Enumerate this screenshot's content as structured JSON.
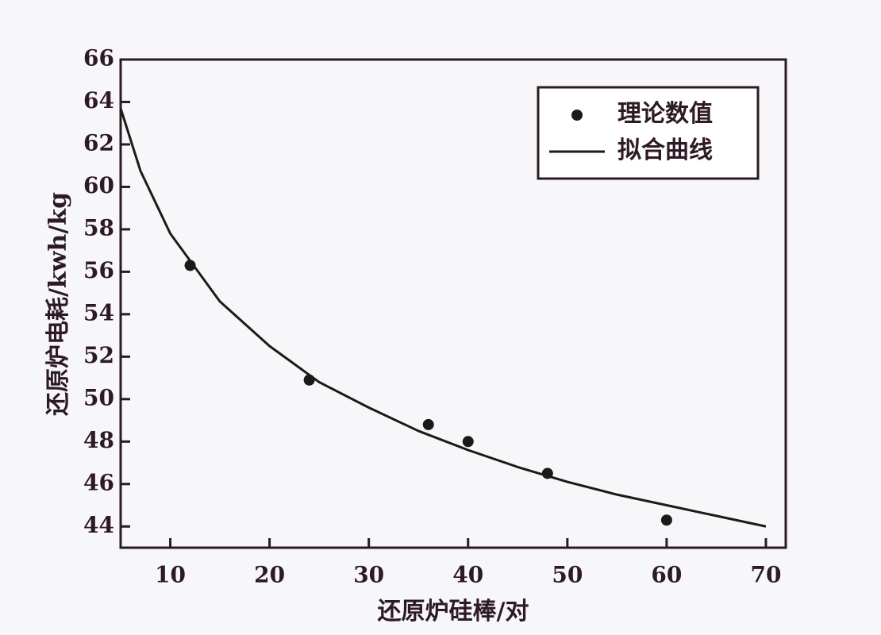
{
  "chart_data": {
    "type": "scatter",
    "xlabel": "还原炉硅棒/对",
    "ylabel": "还原炉电耗/kwh/kg",
    "xlim": [
      5,
      72
    ],
    "ylim": [
      43,
      66
    ],
    "xticks": [
      10,
      20,
      30,
      40,
      50,
      60,
      70
    ],
    "yticks": [
      44,
      46,
      48,
      50,
      52,
      54,
      56,
      58,
      60,
      62,
      64,
      66
    ],
    "legend": "upper right",
    "series": [
      {
        "name": "理论数值",
        "type": "scatter",
        "color": "#1a1a1a",
        "x": [
          12,
          24,
          36,
          40,
          48,
          60
        ],
        "values": [
          56.3,
          50.9,
          48.8,
          48.0,
          46.5,
          44.3
        ]
      },
      {
        "name": "拟合曲线",
        "type": "line",
        "color": "#1a1a1a",
        "x": [
          5,
          7,
          10,
          15,
          20,
          25,
          30,
          35,
          40,
          45,
          50,
          55,
          60,
          65,
          70
        ],
        "values": [
          63.7,
          60.75,
          57.8,
          54.6,
          52.5,
          50.8,
          49.6,
          48.5,
          47.6,
          46.8,
          46.1,
          45.5,
          45.0,
          44.5,
          44.0
        ]
      }
    ]
  }
}
